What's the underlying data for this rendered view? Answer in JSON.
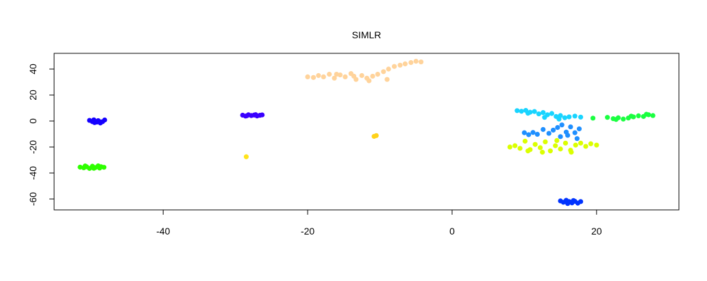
{
  "chart_data": {
    "type": "scatter",
    "title": "SIMLR",
    "xlim": [
      -55.1,
      31.4
    ],
    "ylim": [
      -68.4,
      52.1
    ],
    "xticks": [
      -40,
      -20,
      0,
      20
    ],
    "yticks": [
      -60,
      -40,
      -20,
      0,
      20,
      40
    ],
    "grid": false,
    "series": [
      {
        "color": "#1500ff",
        "x": [
          -50.2,
          -49.8,
          -49.5,
          -49.2,
          -49,
          -48.7,
          -48.4,
          -48.1,
          -49.6,
          -48.9
        ],
        "values": [
          0.5,
          -0.5,
          -1.2,
          -0.8,
          0.3,
          -1.5,
          -0.5,
          0.8,
          0.9,
          -0.2
        ]
      },
      {
        "color": "#2eff00",
        "x": [
          -51.5,
          -51,
          -50.6,
          -50.2,
          -49.8,
          -49.4,
          -49,
          -48.6,
          -48.2,
          -50.8,
          -49.6,
          -48.8
        ],
        "values": [
          -35.5,
          -36,
          -35.2,
          -36.5,
          -34.8,
          -35.8,
          -34.5,
          -35.2,
          -35.6,
          -34.6,
          -36.4,
          -36.2
        ]
      },
      {
        "color": "#3a00ff",
        "x": [
          -29,
          -28.6,
          -28.2,
          -27.8,
          -27.4,
          -27,
          -26.6,
          -26.3,
          -28.4,
          -27.2
        ],
        "values": [
          4.5,
          3.8,
          4.8,
          4.2,
          4.6,
          3.9,
          4.4,
          4.7,
          4.1,
          4.9
        ]
      },
      {
        "color": "#ffe31a",
        "x": [
          -28.5
        ],
        "values": [
          -27.5
        ]
      },
      {
        "color": "#ffd21a",
        "x": [
          -10.8,
          -10.5
        ],
        "values": [
          -11.8,
          -11.2
        ]
      },
      {
        "color": "#ffd39b",
        "x": [
          -20,
          -19.2,
          -18.5,
          -17.8,
          -17,
          -16.3,
          -15.5,
          -14.8,
          -14,
          -13.3,
          -12.5,
          -11.8,
          -11,
          -10.3,
          -9.5,
          -8.8,
          -8,
          -7.2,
          -6.5,
          -5.7,
          -5,
          -4.3,
          -16,
          -13.6,
          -11.5,
          -9
        ],
        "values": [
          34,
          33.5,
          35,
          34,
          36,
          33,
          35.5,
          34,
          36.5,
          32,
          35,
          33,
          34.5,
          36,
          38,
          40,
          42,
          43,
          44,
          45,
          46,
          45.5,
          36,
          34.5,
          31,
          32
        ]
      },
      {
        "color": "#19d4ff",
        "x": [
          9,
          9.6,
          10.2,
          10.8,
          11.4,
          12,
          12.6,
          13.2,
          13.8,
          14.4,
          15,
          15.6,
          16.2,
          17,
          17.8,
          10.5,
          12.8,
          14.8
        ],
        "values": [
          8,
          7.5,
          8.2,
          6.8,
          7.3,
          5.5,
          6.5,
          4.8,
          5.8,
          3.5,
          4.2,
          2.5,
          3.2,
          3.8,
          3,
          6,
          2.8,
          1.5
        ]
      },
      {
        "color": "#1aff40",
        "x": [
          19.5,
          21.5,
          22.3,
          23,
          23.7,
          24.4,
          25.1,
          25.8,
          26.5,
          27.2,
          27.8,
          22.7,
          24.8,
          26.9
        ],
        "values": [
          2.2,
          2.8,
          1.8,
          2.5,
          1.5,
          2.3,
          3.2,
          4,
          3.5,
          4.8,
          4.2,
          1.2,
          3.8,
          5.2
        ]
      },
      {
        "color": "#1f8fff",
        "x": [
          10,
          10.6,
          11.2,
          11.8,
          14,
          14.6,
          15.2,
          15.8,
          16.4,
          17,
          17.6,
          15,
          16,
          13.4,
          12.6,
          17.3
        ],
        "values": [
          -9,
          -10.5,
          -8.8,
          -10.2,
          -7,
          -5,
          -3,
          -8.5,
          -4.5,
          -9,
          -6,
          -12,
          -11,
          -9.5,
          -6.5,
          -13.5
        ]
      },
      {
        "color": "#dbff00",
        "x": [
          8,
          8.7,
          9.4,
          10.1,
          10.8,
          11.5,
          12.2,
          12.9,
          13.6,
          14.3,
          15,
          15.7,
          16.4,
          17.1,
          17.8,
          18.5,
          19.2,
          20,
          10.5,
          12.5,
          14.5,
          16.5
        ],
        "values": [
          -20,
          -19,
          -21,
          -15.5,
          -22,
          -18,
          -20.5,
          -16,
          -23,
          -19,
          -21.5,
          -17,
          -22.5,
          -18.5,
          -17,
          -19.5,
          -17.5,
          -18.5,
          -23,
          -24,
          -15,
          -24
        ]
      },
      {
        "color": "#0033ff",
        "x": [
          15,
          15.4,
          15.8,
          16.2,
          16.6,
          17,
          17.4,
          17.8,
          16,
          16.8
        ],
        "values": [
          -61.5,
          -62.5,
          -61,
          -62,
          -63,
          -61.8,
          -63.2,
          -62,
          -63.5,
          -61.2
        ]
      }
    ]
  }
}
